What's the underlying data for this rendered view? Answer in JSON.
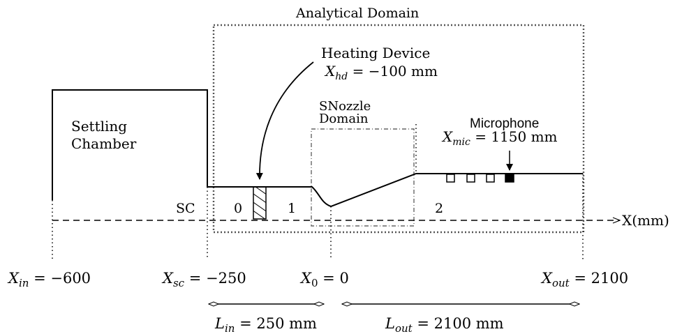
{
  "labels": {
    "analytical_domain": "Analytical Domain",
    "heating_device": "Heating Device",
    "x_hd_sub": "hd",
    "x_hd_value": " = −100 mm",
    "snozzle_line1": "SNozzle",
    "snozzle_line2": "Domain",
    "microphone": "Microphone",
    "x_mic_sub": "mic",
    "x_mic_value": " = 1150 mm",
    "settling_line1": "Settling",
    "settling_line2": "Chamber",
    "sc": "SC",
    "region_0": "0",
    "region_1": "1",
    "region_2": "2",
    "axis": "X(mm)",
    "x_in_sub": "in",
    "x_in_value": " = −600",
    "x_sc_sub": "sc",
    "x_sc_value": " = −250",
    "x_0_sub": "0",
    "x_0_value": " = 0",
    "x_out_sub": "out",
    "x_out_value": " = 2100",
    "l_in_sub": "in",
    "l_in_value": " = 250 mm",
    "l_out_sub": "out",
    "l_out_value": " = 2100 mm"
  },
  "symbols": {
    "x": "X",
    "l": "L"
  },
  "colors": {
    "line": "#000000",
    "domain_box": "#555555",
    "snozzle_box": "#666666"
  }
}
